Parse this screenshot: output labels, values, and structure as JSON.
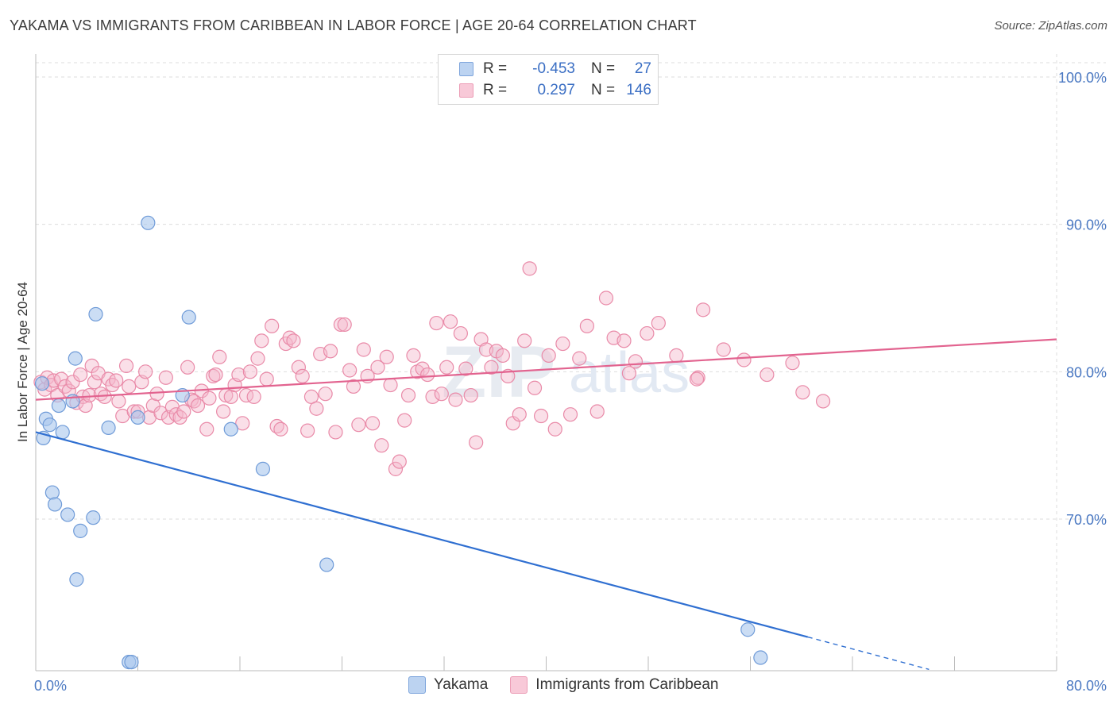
{
  "title": "YAKAMA VS IMMIGRANTS FROM CARIBBEAN IN LABOR FORCE | AGE 20-64 CORRELATION CHART",
  "source": "Source: ZipAtlas.com",
  "watermark": {
    "zip": "ZIP",
    "atlas": "atlas"
  },
  "legend": {
    "rows": [
      {
        "r_label": "R =",
        "r_value": "-0.453",
        "n_label": "N =",
        "n_value": "27"
      },
      {
        "r_label": "R =",
        "r_value": "0.297",
        "n_label": "N =",
        "n_value": "146"
      }
    ]
  },
  "bottom_legend": [
    "Yakama",
    "Immigrants from Caribbean"
  ],
  "colors": {
    "blue_fill": "#a9c6ec",
    "blue_stroke": "#6f9bd8",
    "blue_line": "#2f6fd1",
    "pink_fill": "#f5b8cb",
    "pink_stroke": "#e98aa8",
    "pink_line": "#e2638f",
    "tick_text": "#4a78c2",
    "grid": "#dddddd"
  },
  "chart_data": {
    "type": "scatter",
    "title": "YAKAMA VS IMMIGRANTS FROM CARIBBEAN IN LABOR FORCE | AGE 20-64 CORRELATION CHART",
    "xlabel": "",
    "ylabel": "In Labor Force | Age 20-64",
    "xlim": [
      0,
      80
    ],
    "ylim": [
      60,
      102
    ],
    "x_tick_labels": [
      "0.0%",
      "80.0%"
    ],
    "y_ticks": [
      70,
      80,
      90,
      100
    ],
    "y_tick_labels": [
      "70.0%",
      "80.0%",
      "90.0%",
      "100.0%"
    ],
    "grid": true,
    "legend_placement": "top-center",
    "series": [
      {
        "name": "Yakama",
        "r": -0.453,
        "n": 27,
        "trend": {
          "x": [
            0,
            60.5
          ],
          "y": [
            75.9,
            62.0
          ],
          "dashed_to": [
            70,
            59.8
          ]
        },
        "points": [
          [
            0.5,
            79.2
          ],
          [
            0.6,
            75.5
          ],
          [
            0.8,
            76.8
          ],
          [
            1.1,
            76.4
          ],
          [
            1.3,
            71.8
          ],
          [
            1.5,
            71.0
          ],
          [
            1.8,
            77.7
          ],
          [
            2.1,
            75.9
          ],
          [
            2.5,
            70.3
          ],
          [
            2.9,
            78.0
          ],
          [
            3.1,
            80.9
          ],
          [
            3.2,
            65.9
          ],
          [
            3.5,
            69.2
          ],
          [
            4.5,
            70.1
          ],
          [
            4.7,
            83.9
          ],
          [
            5.7,
            76.2
          ],
          [
            7.3,
            60.3
          ],
          [
            7.5,
            60.3
          ],
          [
            8.0,
            76.9
          ],
          [
            8.8,
            90.1
          ],
          [
            11.5,
            78.4
          ],
          [
            12.0,
            83.7
          ],
          [
            15.3,
            76.1
          ],
          [
            17.8,
            73.4
          ],
          [
            22.8,
            66.9
          ],
          [
            55.8,
            62.5
          ],
          [
            56.8,
            60.6
          ]
        ]
      },
      {
        "name": "Immigrants from Caribbean",
        "r": 0.297,
        "n": 146,
        "trend": {
          "x": [
            0,
            80
          ],
          "y": [
            78.1,
            82.2
          ]
        },
        "points": [
          [
            0.4,
            79.3
          ],
          [
            0.7,
            78.8
          ],
          [
            0.9,
            79.6
          ],
          [
            1.2,
            79.1
          ],
          [
            1.4,
            79.4
          ],
          [
            1.7,
            78.4
          ],
          [
            2.0,
            79.5
          ],
          [
            2.3,
            79.0
          ],
          [
            2.6,
            78.7
          ],
          [
            2.9,
            79.3
          ],
          [
            3.2,
            77.9
          ],
          [
            3.5,
            79.8
          ],
          [
            3.7,
            78.3
          ],
          [
            3.9,
            77.7
          ],
          [
            4.2,
            78.4
          ],
          [
            4.4,
            80.4
          ],
          [
            4.6,
            79.3
          ],
          [
            4.9,
            79.9
          ],
          [
            5.1,
            78.5
          ],
          [
            5.4,
            78.3
          ],
          [
            5.7,
            79.5
          ],
          [
            6.0,
            79.1
          ],
          [
            6.3,
            79.4
          ],
          [
            6.5,
            78.0
          ],
          [
            6.8,
            77.0
          ],
          [
            7.1,
            80.4
          ],
          [
            7.3,
            79.0
          ],
          [
            7.7,
            77.3
          ],
          [
            8.0,
            77.3
          ],
          [
            8.3,
            79.3
          ],
          [
            8.6,
            80.0
          ],
          [
            8.9,
            76.9
          ],
          [
            9.2,
            77.7
          ],
          [
            9.5,
            78.5
          ],
          [
            9.8,
            77.2
          ],
          [
            10.2,
            79.6
          ],
          [
            10.4,
            76.9
          ],
          [
            10.7,
            77.6
          ],
          [
            11.0,
            77.1
          ],
          [
            11.3,
            76.9
          ],
          [
            11.6,
            77.3
          ],
          [
            11.9,
            80.3
          ],
          [
            12.2,
            78.1
          ],
          [
            12.4,
            78.0
          ],
          [
            12.7,
            77.7
          ],
          [
            13.0,
            78.7
          ],
          [
            13.4,
            76.1
          ],
          [
            13.6,
            78.2
          ],
          [
            13.9,
            79.7
          ],
          [
            14.1,
            79.8
          ],
          [
            14.4,
            81.0
          ],
          [
            14.7,
            77.3
          ],
          [
            14.9,
            78.4
          ],
          [
            15.3,
            78.3
          ],
          [
            15.6,
            79.1
          ],
          [
            15.9,
            79.8
          ],
          [
            16.2,
            76.5
          ],
          [
            16.5,
            78.4
          ],
          [
            16.8,
            80.0
          ],
          [
            17.1,
            78.3
          ],
          [
            17.4,
            80.9
          ],
          [
            17.7,
            82.1
          ],
          [
            18.1,
            79.5
          ],
          [
            18.5,
            83.1
          ],
          [
            18.9,
            76.3
          ],
          [
            19.2,
            76.1
          ],
          [
            19.6,
            81.9
          ],
          [
            19.9,
            82.3
          ],
          [
            20.2,
            82.1
          ],
          [
            20.6,
            80.3
          ],
          [
            20.9,
            79.7
          ],
          [
            21.3,
            76.0
          ],
          [
            21.6,
            78.3
          ],
          [
            22.0,
            77.5
          ],
          [
            22.3,
            81.2
          ],
          [
            22.7,
            78.5
          ],
          [
            23.1,
            81.4
          ],
          [
            23.5,
            75.9
          ],
          [
            23.9,
            83.2
          ],
          [
            24.2,
            83.2
          ],
          [
            24.6,
            80.1
          ],
          [
            24.9,
            79.0
          ],
          [
            25.3,
            76.4
          ],
          [
            25.7,
            81.5
          ],
          [
            26.0,
            79.7
          ],
          [
            26.4,
            76.5
          ],
          [
            26.8,
            80.3
          ],
          [
            27.1,
            75.0
          ],
          [
            27.5,
            81.0
          ],
          [
            27.8,
            79.1
          ],
          [
            28.2,
            73.4
          ],
          [
            28.5,
            73.9
          ],
          [
            28.9,
            76.7
          ],
          [
            29.2,
            78.4
          ],
          [
            29.6,
            81.1
          ],
          [
            29.9,
            80.0
          ],
          [
            30.3,
            80.2
          ],
          [
            30.7,
            79.8
          ],
          [
            31.1,
            78.3
          ],
          [
            31.4,
            83.3
          ],
          [
            31.8,
            78.5
          ],
          [
            32.2,
            80.3
          ],
          [
            32.5,
            83.4
          ],
          [
            32.9,
            78.1
          ],
          [
            33.3,
            82.6
          ],
          [
            33.7,
            80.2
          ],
          [
            34.1,
            78.4
          ],
          [
            34.5,
            75.2
          ],
          [
            34.9,
            82.2
          ],
          [
            35.3,
            81.5
          ],
          [
            35.7,
            80.3
          ],
          [
            36.1,
            81.4
          ],
          [
            36.6,
            81.1
          ],
          [
            37.0,
            79.7
          ],
          [
            37.4,
            76.5
          ],
          [
            37.9,
            77.1
          ],
          [
            38.3,
            82.1
          ],
          [
            38.7,
            87.0
          ],
          [
            39.1,
            78.9
          ],
          [
            39.6,
            77.0
          ],
          [
            40.2,
            81.1
          ],
          [
            40.7,
            76.1
          ],
          [
            41.3,
            81.9
          ],
          [
            41.9,
            77.1
          ],
          [
            42.6,
            80.9
          ],
          [
            43.2,
            83.1
          ],
          [
            44.0,
            77.3
          ],
          [
            44.7,
            85.0
          ],
          [
            45.3,
            82.3
          ],
          [
            46.1,
            82.1
          ],
          [
            47.0,
            80.7
          ],
          [
            47.9,
            82.6
          ],
          [
            48.8,
            83.3
          ],
          [
            50.2,
            81.1
          ],
          [
            51.9,
            79.6
          ],
          [
            52.3,
            84.2
          ],
          [
            53.9,
            81.5
          ],
          [
            55.5,
            80.8
          ],
          [
            57.3,
            79.8
          ],
          [
            59.3,
            80.6
          ],
          [
            60.1,
            78.6
          ],
          [
            61.7,
            78.0
          ],
          [
            51.8,
            79.5
          ],
          [
            46.5,
            79.9
          ]
        ]
      }
    ]
  }
}
